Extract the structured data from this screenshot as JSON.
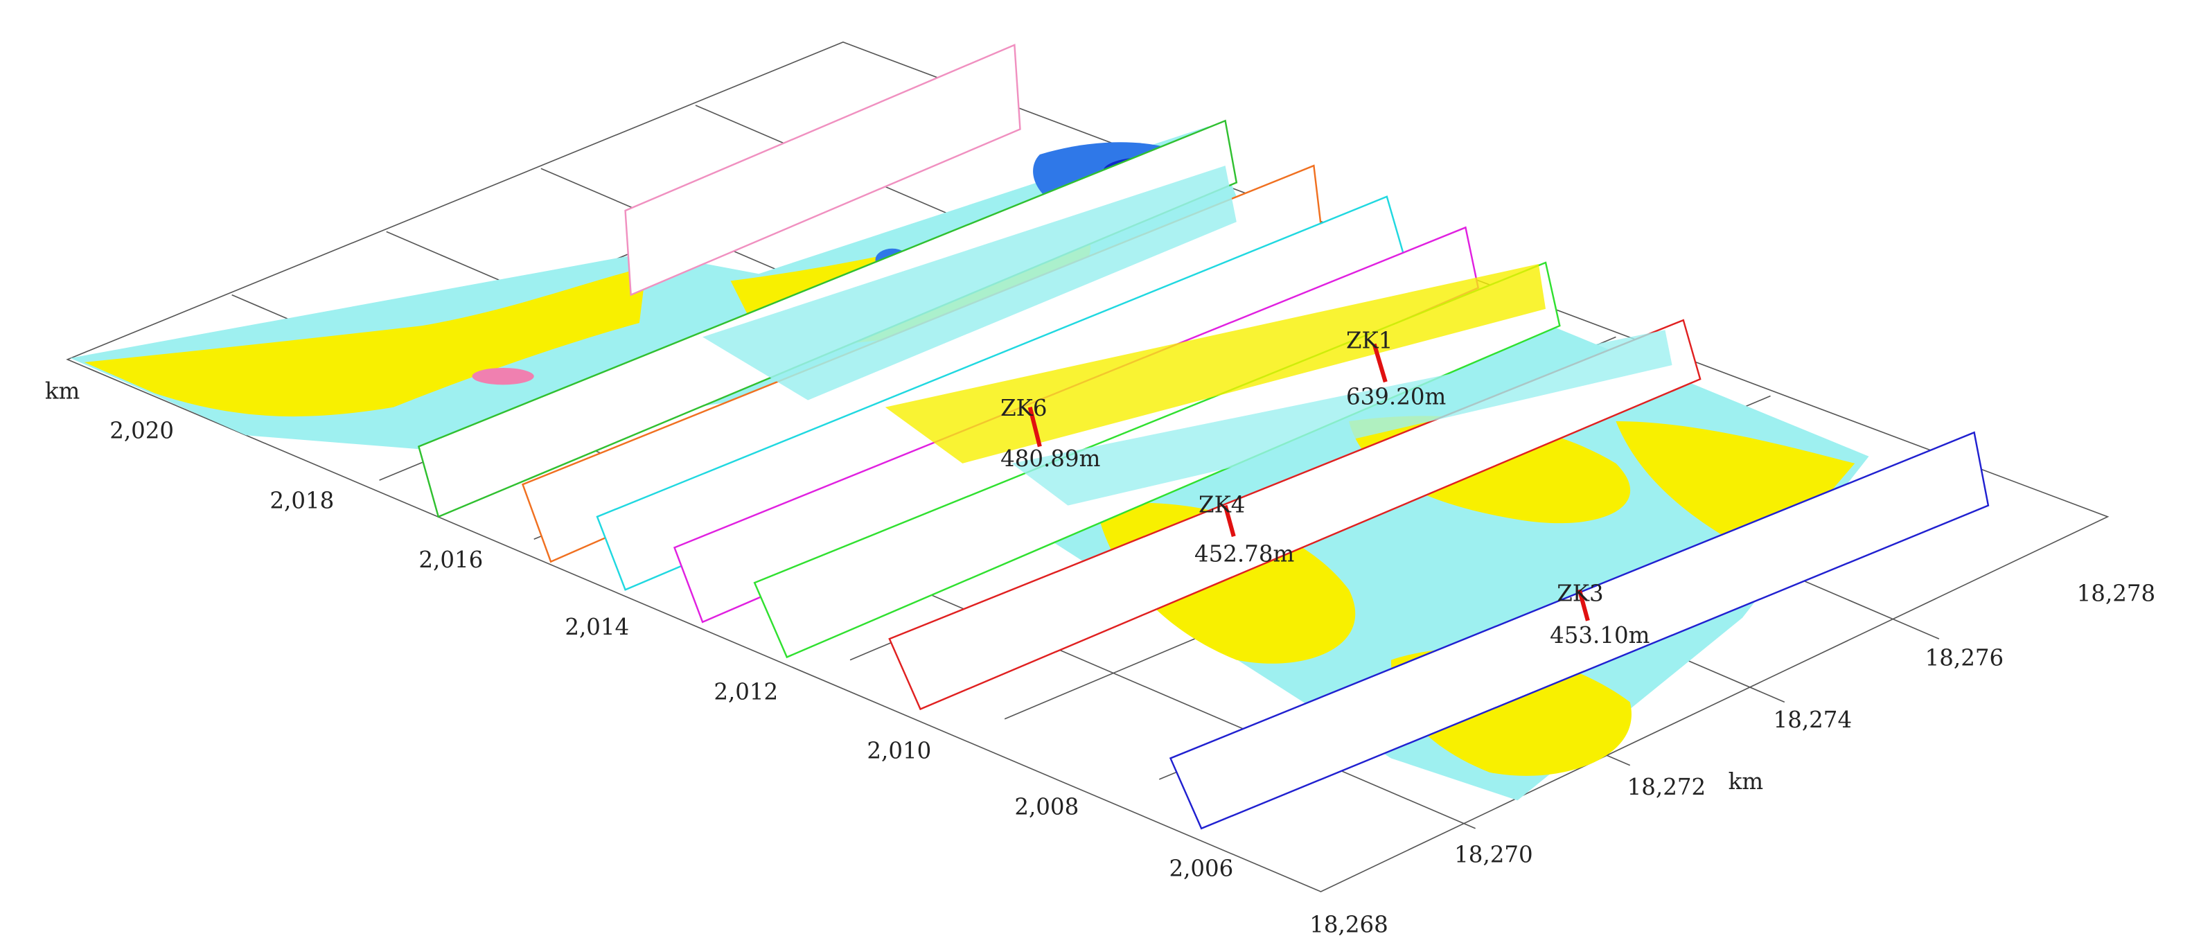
{
  "axes": {
    "y_label": "km",
    "y_ticks": [
      "2,020",
      "2,018",
      "2,016",
      "2,014",
      "2,012",
      "2,010",
      "2,008",
      "2,006"
    ],
    "x_label": "km",
    "x_ticks": [
      "18,268",
      "18,270",
      "18,272",
      "18,274",
      "18,276",
      "18,278"
    ]
  },
  "drillholes": [
    {
      "name": "ZK6",
      "depth": "480.89m"
    },
    {
      "name": "ZK1",
      "depth": "639.20m"
    },
    {
      "name": "ZK4",
      "depth": "452.78m"
    },
    {
      "name": "ZK3",
      "depth": "453.10m"
    }
  ]
}
